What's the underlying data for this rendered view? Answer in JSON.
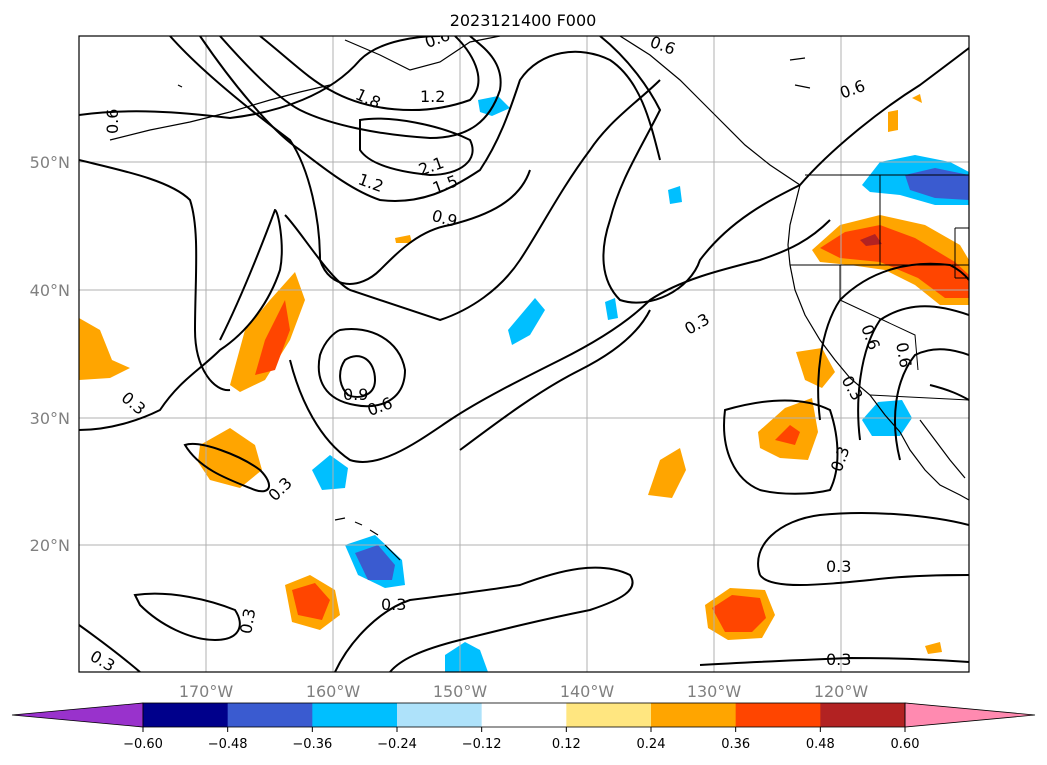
{
  "title": "2023121400 F000",
  "map": {
    "lon_range": [
      -180,
      -110
    ],
    "lat_range": [
      10,
      60
    ],
    "gridlines": true,
    "lat_labels": [
      "50°N",
      "40°N",
      "30°N",
      "20°N"
    ],
    "lon_labels": [
      "170°W",
      "160°W",
      "150°W",
      "140°W",
      "130°W",
      "120°W"
    ]
  },
  "contour_labels": [
    "0.6",
    "1.8",
    "1.2",
    "2.1",
    "1.5",
    "1.2",
    "0.9",
    "0.9",
    "0.6",
    "0.3",
    "0.3",
    "0.3",
    "0.3",
    "0.3",
    "0.3",
    "0.3",
    "0.3",
    "0.6",
    "0.6",
    "0.6",
    "0.6",
    "0.3",
    "0.3",
    "0.6"
  ],
  "colorbar": {
    "ticks": [
      "−0.60",
      "−0.48",
      "−0.36",
      "−0.24",
      "−0.12",
      "0.12",
      "0.24",
      "0.36",
      "0.48",
      "0.60"
    ],
    "colors": [
      "#9932cc",
      "#00008b",
      "#3a5bd0",
      "#00bfff",
      "#aee2fa",
      "#ffffff",
      "#ffe680",
      "#ffa500",
      "#ff4500",
      "#b22222",
      "#ff8ab0"
    ],
    "extend": "both"
  }
}
